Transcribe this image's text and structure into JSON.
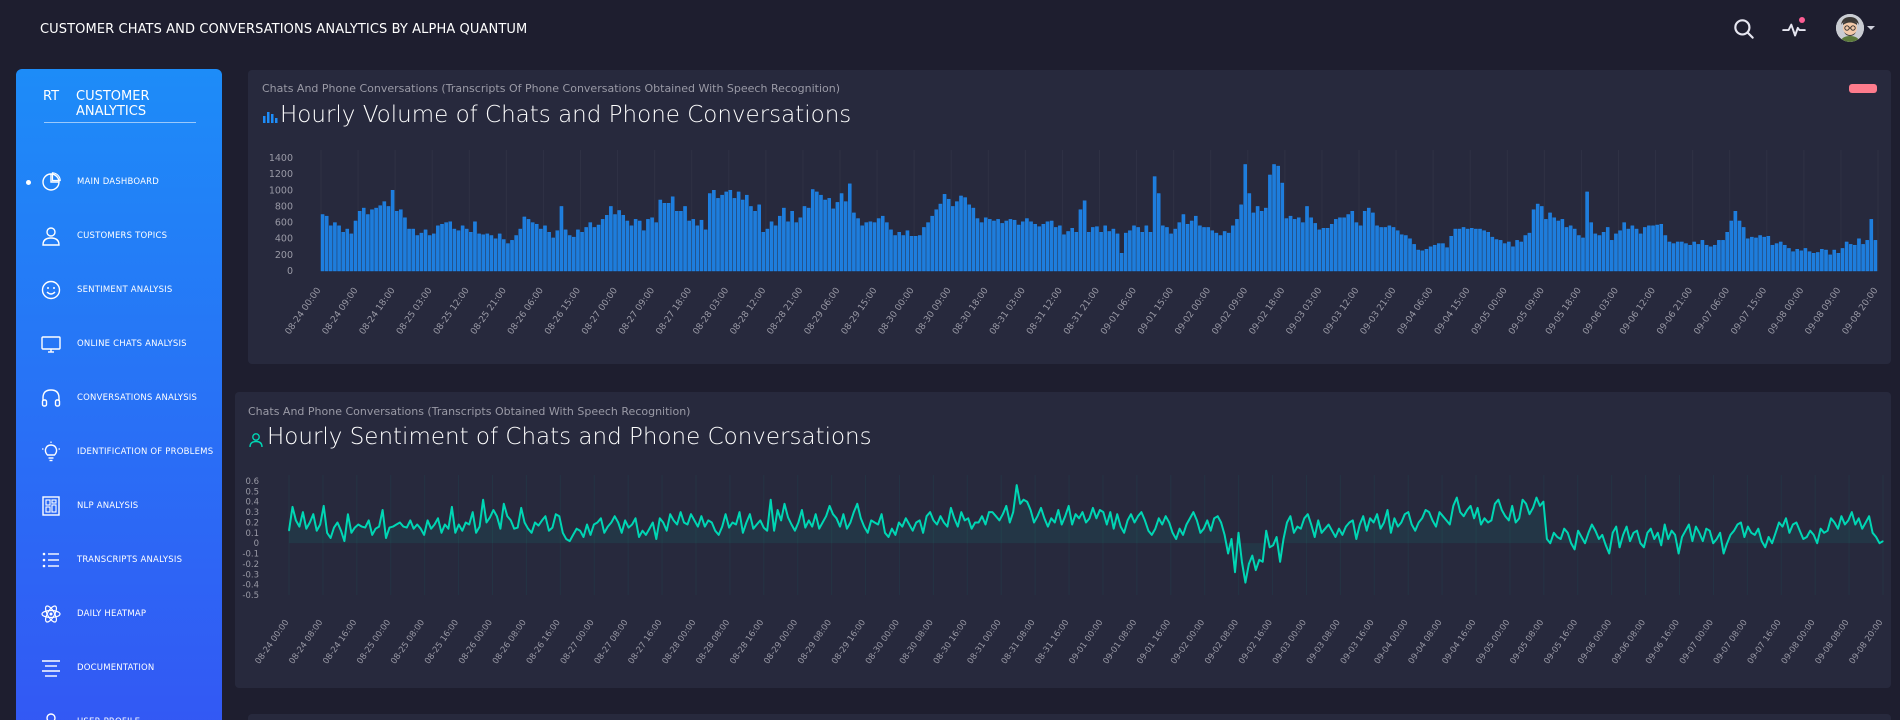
{
  "app": {
    "title": "CUSTOMER CHATS AND CONVERSATIONS ANALYTICS BY ALPHA QUANTUM"
  },
  "topbar": {
    "search_icon": "search-icon",
    "activity_icon": "activity-icon",
    "has_notification": true,
    "avatar": "user-avatar"
  },
  "sidebar": {
    "brand_mini": "RT",
    "brand_full": "CUSTOMER ANALYTICS",
    "items": [
      {
        "label": "MAIN DASHBOARD",
        "icon": "pie-chart-icon",
        "active": true
      },
      {
        "label": "CUSTOMERS TOPICS",
        "icon": "user-icon",
        "active": false
      },
      {
        "label": "SENTIMENT ANALYSIS",
        "icon": "smile-icon",
        "active": false
      },
      {
        "label": "ONLINE CHATS ANALYSIS",
        "icon": "monitor-icon",
        "active": false
      },
      {
        "label": "CONVERSATIONS ANALYSIS",
        "icon": "headphones-icon",
        "active": false
      },
      {
        "label": "IDENTIFICATION OF PROBLEMS",
        "icon": "bulb-icon",
        "active": false
      },
      {
        "label": "NLP ANALYSIS",
        "icon": "grid-icon",
        "active": false
      },
      {
        "label": "TRANSCRIPTS ANALYSIS",
        "icon": "list-icon",
        "active": false
      },
      {
        "label": "DAILY HEATMAP",
        "icon": "atom-icon",
        "active": false
      },
      {
        "label": "DOCUMENTATION",
        "icon": "align-icon",
        "active": false
      },
      {
        "label": "USER PROFILE",
        "icon": "user-icon",
        "active": false
      }
    ]
  },
  "cards": {
    "volume": {
      "category": "Chats And Phone Conversations (Transcripts Of Phone Conversations Obtained With Speech Recognition)",
      "title": "Hourly Volume of Chats and Phone Conversations",
      "title_icon": "bar-chart-icon"
    },
    "sentiment": {
      "category": "Chats And Phone Conversations (Transcripts Obtained With Speech Recognition)",
      "title": "Hourly Sentiment of Chats and Phone Conversations",
      "title_icon": "user-icon"
    }
  },
  "colors": {
    "background": "#1e1e2f",
    "card": "#27293d",
    "sidebar_top": "#1d8cf8",
    "sidebar_bottom": "#3358f4",
    "bar": "#1d8cf8",
    "line": "#00d6b4",
    "notification": "#fd5d93"
  },
  "chart_data": [
    {
      "type": "bar",
      "title": "Hourly Volume of Chats and Phone Conversations",
      "yticks": [
        0,
        200,
        400,
        600,
        800,
        1000,
        1200,
        1400
      ],
      "ylim": [
        0,
        1400
      ],
      "grid": false,
      "xticks": [
        "08-24 00:00",
        "08-24 09:00",
        "08-24 18:00",
        "08-25 03:00",
        "08-25 12:00",
        "08-25 21:00",
        "08-26 06:00",
        "08-26 15:00",
        "08-27 00:00",
        "08-27 09:00",
        "08-27 18:00",
        "08-28 03:00",
        "08-28 12:00",
        "08-28 21:00",
        "08-29 06:00",
        "08-29 15:00",
        "08-30 00:00",
        "08-30 09:00",
        "08-30 18:00",
        "08-31 03:00",
        "08-31 12:00",
        "08-31 21:00",
        "09-01 06:00",
        "09-01 15:00",
        "09-02 00:00",
        "09-02 09:00",
        "09-02 18:00",
        "09-03 03:00",
        "09-03 12:00",
        "09-03 21:00",
        "09-04 06:00",
        "09-04 15:00",
        "09-05 00:00",
        "09-05 09:00",
        "09-05 18:00",
        "09-06 03:00",
        "09-06 12:00",
        "09-06 21:00",
        "09-07 06:00",
        "09-07 15:00",
        "09-08 00:00",
        "09-08 09:00",
        "09-08 20:00"
      ],
      "values": [
        700,
        680,
        560,
        600,
        560,
        480,
        520,
        460,
        620,
        740,
        780,
        700,
        760,
        780,
        810,
        860,
        800,
        1000,
        740,
        760,
        660,
        520,
        520,
        440,
        470,
        510,
        440,
        460,
        560,
        580,
        600,
        610,
        520,
        500,
        560,
        520,
        480,
        610,
        460,
        450,
        460,
        440,
        400,
        460,
        390,
        340,
        380,
        440,
        520,
        670,
        640,
        600,
        580,
        520,
        560,
        480,
        410,
        500,
        800,
        510,
        440,
        420,
        510,
        480,
        540,
        600,
        540,
        570,
        640,
        690,
        800,
        700,
        750,
        690,
        620,
        560,
        640,
        620,
        500,
        640,
        660,
        600,
        880,
        840,
        840,
        920,
        740,
        740,
        800,
        620,
        640,
        560,
        630,
        510,
        960,
        1000,
        900,
        940,
        980,
        1000,
        900,
        980,
        880,
        940,
        800,
        740,
        820,
        480,
        520,
        610,
        560,
        680,
        780,
        610,
        740,
        600,
        660,
        800,
        780,
        1010,
        980,
        940,
        880,
        900,
        770,
        850,
        960,
        860,
        1080,
        720,
        650,
        560,
        600,
        610,
        600,
        650,
        680,
        600,
        510,
        440,
        480,
        440,
        500,
        430,
        430,
        440,
        540,
        600,
        680,
        760,
        830,
        950,
        890,
        800,
        860,
        930,
        910,
        820,
        780,
        650,
        600,
        660,
        640,
        620,
        640,
        590,
        620,
        640,
        630,
        570,
        610,
        650,
        610,
        580,
        550,
        580,
        610,
        620,
        540,
        560,
        450,
        490,
        530,
        480,
        760,
        870,
        480,
        540,
        550,
        480,
        560,
        490,
        520,
        460,
        220,
        470,
        500,
        560,
        540,
        480,
        560,
        480,
        1170,
        960,
        560,
        540,
        460,
        520,
        600,
        700,
        580,
        620,
        680,
        560,
        540,
        540,
        500,
        470,
        440,
        490,
        470,
        560,
        640,
        820,
        1320,
        960,
        720,
        800,
        740,
        780,
        1190,
        1320,
        1300,
        1090,
        650,
        680,
        640,
        660,
        600,
        800,
        660,
        590,
        510,
        530,
        530,
        580,
        640,
        660,
        660,
        700,
        740,
        600,
        560,
        740,
        780,
        720,
        560,
        540,
        540,
        560,
        540,
        500,
        450,
        440,
        400,
        330,
        260,
        250,
        270,
        300,
        320,
        340,
        340,
        290,
        430,
        520,
        520,
        540,
        520,
        530,
        520,
        520,
        500,
        480,
        420,
        390,
        380,
        340,
        360,
        300,
        380,
        360,
        440,
        470,
        760,
        830,
        800,
        640,
        720,
        660,
        620,
        640,
        540,
        560,
        520,
        440,
        410,
        980,
        600,
        460,
        440,
        480,
        540,
        380,
        460,
        500,
        600,
        520,
        560,
        520,
        460,
        540,
        560,
        560,
        570,
        580,
        440,
        360,
        340,
        360,
        360,
        340,
        320,
        360,
        330,
        380,
        320,
        300,
        320,
        380,
        380,
        480,
        620,
        740,
        620,
        540,
        400,
        420,
        410,
        440,
        420,
        430,
        320,
        340,
        360,
        320,
        280,
        240,
        270,
        250,
        280,
        240,
        220,
        230,
        270,
        260,
        200,
        260,
        220,
        280,
        360,
        330,
        320,
        400,
        330,
        380,
        640,
        380
      ]
    },
    {
      "type": "line",
      "title": "Hourly Sentiment of Chats and Phone Conversations",
      "yticks": [
        0.6,
        0.5,
        0.4,
        0.3,
        0.2,
        0.1,
        0,
        -0.1,
        -0.2,
        -0.3,
        -0.4,
        -0.5
      ],
      "ylim": [
        -0.5,
        0.6
      ],
      "grid": false,
      "xticks": [
        "08-24 00:00",
        "08-24 08:00",
        "08-24 16:00",
        "08-25 00:00",
        "08-25 08:00",
        "08-25 16:00",
        "08-26 00:00",
        "08-26 08:00",
        "08-26 16:00",
        "08-27 00:00",
        "08-27 08:00",
        "08-27 16:00",
        "08-28 00:00",
        "08-28 08:00",
        "08-28 16:00",
        "08-29 00:00",
        "08-29 08:00",
        "08-29 16:00",
        "08-30 00:00",
        "08-30 08:00",
        "08-30 16:00",
        "08-31 00:00",
        "08-31 08:00",
        "08-31 16:00",
        "09-01 00:00",
        "09-01 08:00",
        "09-01 16:00",
        "09-02 00:00",
        "09-02 08:00",
        "09-02 16:00",
        "09-03 00:00",
        "09-03 08:00",
        "09-03 16:00",
        "09-04 00:00",
        "09-04 08:00",
        "09-04 16:00",
        "09-05 00:00",
        "09-05 08:00",
        "09-05 16:00",
        "09-06 00:00",
        "09-06 08:00",
        "09-06 16:00",
        "09-07 00:00",
        "09-07 08:00",
        "09-07 16:00",
        "09-08 00:00",
        "09-08 08:00",
        "09-08 20:00"
      ],
      "values": [
        0.12,
        0.35,
        0.22,
        0.16,
        0.3,
        0.14,
        0.2,
        0.28,
        0.12,
        0.18,
        0.36,
        0.1,
        0.05,
        0.15,
        0.2,
        0.12,
        0.02,
        0.28,
        0.1,
        0.15,
        0.18,
        0.16,
        0.15,
        0.22,
        0.08,
        0.14,
        0.16,
        0.32,
        0.05,
        0.15,
        0.16,
        0.18,
        0.2,
        0.16,
        0.15,
        0.22,
        0.14,
        0.18,
        0.14,
        0.08,
        0.22,
        0.14,
        0.18,
        0.24,
        0.1,
        0.18,
        0.14,
        0.35,
        0.1,
        0.18,
        0.12,
        0.2,
        0.18,
        0.3,
        0.1,
        0.16,
        0.42,
        0.2,
        0.25,
        0.32,
        0.26,
        0.14,
        0.38,
        0.26,
        0.22,
        0.14,
        0.15,
        0.34,
        0.2,
        0.14,
        0.1,
        0.2,
        0.17,
        0.22,
        0.26,
        0.12,
        0.15,
        0.28,
        0.26,
        0.1,
        0.04,
        0.02,
        0.08,
        0.14,
        0.12,
        0.06,
        0.18,
        0.08,
        0.18,
        0.2,
        0.24,
        0.1,
        0.16,
        0.2,
        0.26,
        0.2,
        0.1,
        0.22,
        0.15,
        0.18,
        0.24,
        0.06,
        0.12,
        0.08,
        0.14,
        0.2,
        0.04,
        0.24,
        0.2,
        0.12,
        0.28,
        0.22,
        0.18,
        0.3,
        0.2,
        0.18,
        0.28,
        0.22,
        0.16,
        0.26,
        0.16,
        0.22,
        0.2,
        0.12,
        0.08,
        0.16,
        0.28,
        0.15,
        0.2,
        0.18,
        0.3,
        0.1,
        0.2,
        0.28,
        0.14,
        0.18,
        0.22,
        0.15,
        0.12,
        0.42,
        0.12,
        0.32,
        0.22,
        0.38,
        0.25,
        0.18,
        0.12,
        0.2,
        0.32,
        0.15,
        0.22,
        0.16,
        0.28,
        0.14,
        0.2,
        0.26,
        0.36,
        0.28,
        0.24,
        0.16,
        0.28,
        0.14,
        0.2,
        0.3,
        0.38,
        0.24,
        0.16,
        0.1,
        0.22,
        0.2,
        0.18,
        0.28,
        0.1,
        0.06,
        0.14,
        0.08,
        0.2,
        0.16,
        0.24,
        0.18,
        0.12,
        0.2,
        0.22,
        0.1,
        0.26,
        0.3,
        0.22,
        0.18,
        0.26,
        0.2,
        0.16,
        0.34,
        0.24,
        0.16,
        0.3,
        0.22,
        0.24,
        0.14,
        0.2,
        0.2,
        0.26,
        0.18,
        0.3,
        0.3,
        0.26,
        0.22,
        0.28,
        0.36,
        0.2,
        0.3,
        0.56,
        0.38,
        0.42,
        0.4,
        0.32,
        0.2,
        0.26,
        0.34,
        0.24,
        0.16,
        0.24,
        0.2,
        0.32,
        0.18,
        0.26,
        0.36,
        0.18,
        0.28,
        0.24,
        0.3,
        0.2,
        0.24,
        0.34,
        0.24,
        0.32,
        0.3,
        0.18,
        0.3,
        0.14,
        0.28,
        0.16,
        0.1,
        0.22,
        0.28,
        0.2,
        0.26,
        0.3,
        0.22,
        0.12,
        0.08,
        0.14,
        0.24,
        0.18,
        0.26,
        0.2,
        0.1,
        0.04,
        0.14,
        0.08,
        0.18,
        0.24,
        0.3,
        0.22,
        0.1,
        0.14,
        0.22,
        0.12,
        0.24,
        0.26,
        0.2,
        0.08,
        -0.1,
        0.04,
        -0.28,
        0.1,
        -0.18,
        -0.38,
        -0.2,
        -0.12,
        -0.26,
        -0.16,
        -0.18,
        0.12,
        -0.04,
        -0.02,
        0.06,
        -0.18,
        0.04,
        0.2,
        0.26,
        0.1,
        0.16,
        0.14,
        0.24,
        0.28,
        0.18,
        0.06,
        0.22,
        0.1,
        0.14,
        0.18,
        0.12,
        0.06,
        0.14,
        0.08,
        0.16,
        0.2,
        0.22,
        0.04,
        0.18,
        0.26,
        0.12,
        0.24,
        0.2,
        0.28,
        0.14,
        0.2,
        0.32,
        0.1,
        0.24,
        0.16,
        0.2,
        0.28,
        0.3,
        0.18,
        0.12,
        0.2,
        0.24,
        0.32,
        0.3,
        0.22,
        0.16,
        0.3,
        0.26,
        0.22,
        0.18,
        0.36,
        0.44,
        0.3,
        0.26,
        0.32,
        0.36,
        0.24,
        0.34,
        0.18,
        0.24,
        0.2,
        0.22,
        0.38,
        0.42,
        0.32,
        0.26,
        0.22,
        0.36,
        0.2,
        0.24,
        0.42,
        0.38,
        0.28,
        0.34,
        0.44,
        0.36,
        0.4,
        0.04,
        0.0,
        0.1,
        0.06,
        0.04,
        0.14,
        0.1,
        0.0,
        -0.06,
        0.12,
        0.06,
        0.0,
        0.1,
        0.18,
        0.12,
        0.04,
        0.08,
        -0.02,
        -0.1,
        0.1,
        0.16,
        -0.04,
        0.08,
        0.16,
        0.02,
        0.1,
        0.12,
        0.0,
        -0.04,
        0.1,
        0.14,
        0.04,
        0.1,
        -0.02,
        0.18,
        0.04,
        0.12,
        0.08,
        -0.1,
        0.06,
        0.12,
        0.18,
        0.02,
        0.16,
        0.1,
        0.02,
        0.14,
        0.12,
        0.0,
        0.04,
        0.1,
        -0.1,
        0.0,
        0.08,
        0.12,
        0.18,
        0.2,
        0.06,
        0.16,
        0.1,
        0.08,
        0.14,
        0.02,
        -0.04,
        0.06,
        0.0,
        0.1,
        0.2,
        0.16,
        0.24,
        0.1,
        0.18,
        0.2,
        0.12,
        0.04,
        0.06,
        0.12,
        0.08,
        0.0,
        0.14,
        0.1,
        0.12,
        0.24,
        0.2,
        0.14,
        0.26,
        0.18,
        0.22,
        0.3,
        0.18,
        0.24,
        0.14,
        0.2,
        0.26,
        0.1,
        0.06,
        0.0,
        0.02
      ]
    }
  ]
}
